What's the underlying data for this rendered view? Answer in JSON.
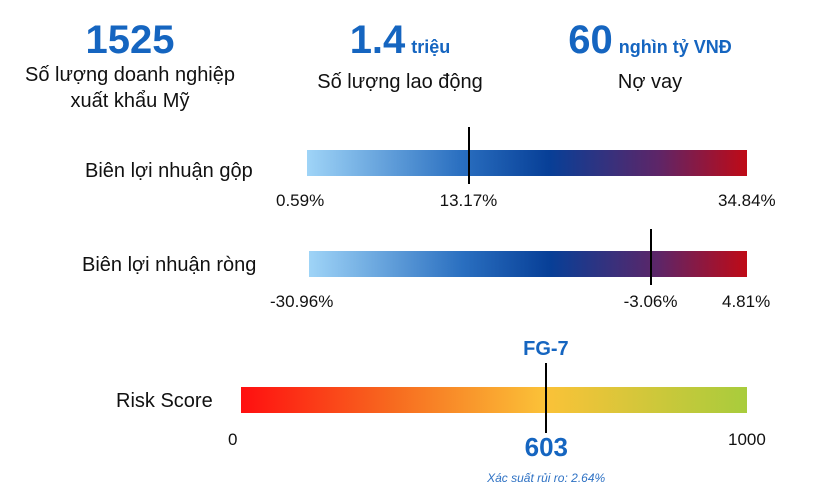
{
  "kpis": [
    {
      "value": "1525",
      "unit": "",
      "label_lines": [
        "Số lượng doanh nghiệp",
        "xuất khẩu Mỹ"
      ]
    },
    {
      "value": "1.4",
      "unit": "triệu",
      "label_lines": [
        "Số lượng lao động"
      ]
    },
    {
      "value": "60",
      "unit": "nghìn tỷ VNĐ",
      "label_lines": [
        "Nợ vay"
      ]
    }
  ],
  "gross_margin": {
    "label": "Biên lợi nhuận gộp",
    "min": "0.59%",
    "marker": "13.17%",
    "max": "34.84%",
    "min_value": 0.59,
    "marker_value": 13.17,
    "max_value": 34.84
  },
  "net_margin": {
    "label": "Biên lợi nhuận ròng",
    "min": "-30.96%",
    "marker": "-3.06%",
    "max": "4.81%",
    "min_value": -30.96,
    "marker_value": -3.06,
    "max_value": 4.81
  },
  "risk": {
    "label": "Risk Score",
    "grade": "FG-7",
    "min": "0",
    "max": "1000",
    "score": "603",
    "min_value": 0,
    "max_value": 1000,
    "score_value": 603,
    "probability_text": "Xác suất rủi ro: 2.64%"
  },
  "colors": {
    "accent": "#1565c0",
    "gradient_blue": [
      "#9fd4f7",
      "#073f97",
      "#bf0a16"
    ],
    "gradient_risk": [
      "#ff0f10",
      "#fbc238",
      "#a8cc3c"
    ]
  }
}
